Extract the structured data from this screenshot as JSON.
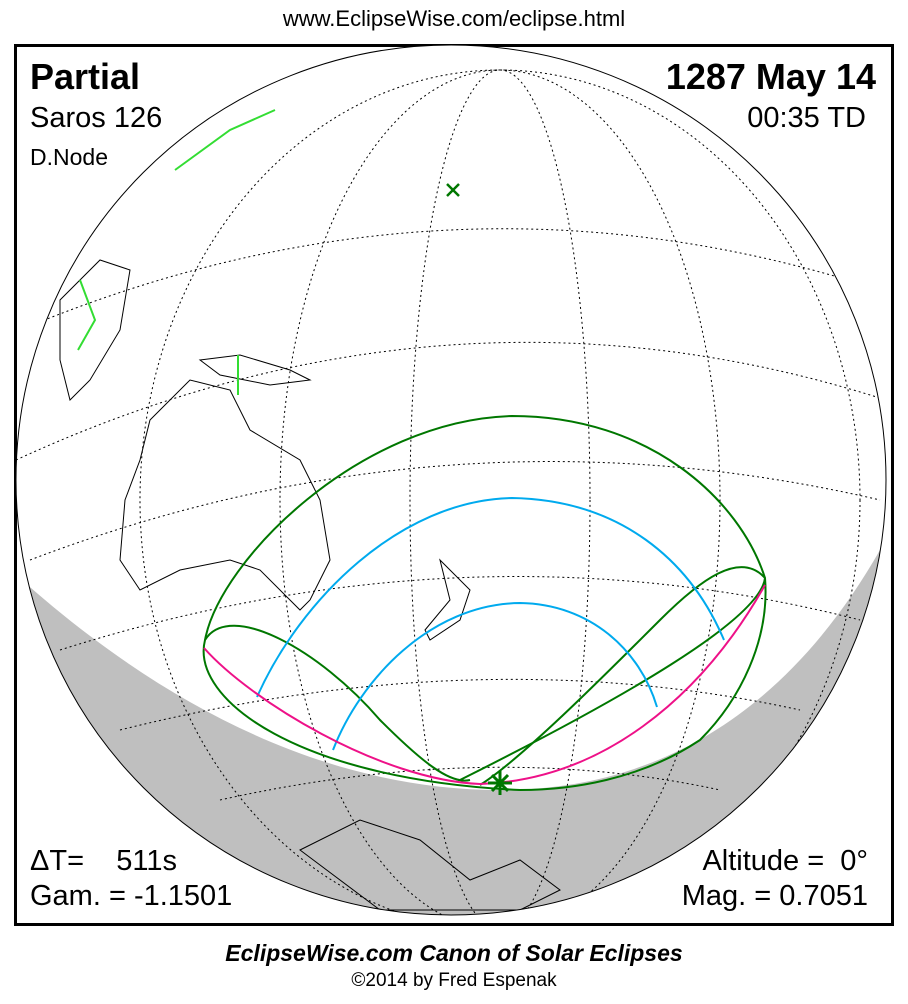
{
  "url": "www.EclipseWise.com/eclipse.html",
  "header": {
    "type": "Partial",
    "saros": "Saros 126",
    "node": "D.Node",
    "date": "1287 May 14",
    "time": "00:35 TD"
  },
  "footer_left": {
    "delta_t": "ΔT=    511s",
    "gamma": "Gam. = -1.1501"
  },
  "footer_right": {
    "altitude": "Altitude =  0°",
    "magnitude": "Mag. = 0.7051"
  },
  "credits": {
    "line1": "EclipseWise.com Canon of Solar Eclipses",
    "line2": "©2014 by Fred Espenak"
  },
  "colors": {
    "limits": "#007700",
    "magnitude_curves": "#00aaee",
    "rise_set": "#ee1188",
    "night": "#bfbfbf",
    "land_highlight": "#33dd33"
  }
}
